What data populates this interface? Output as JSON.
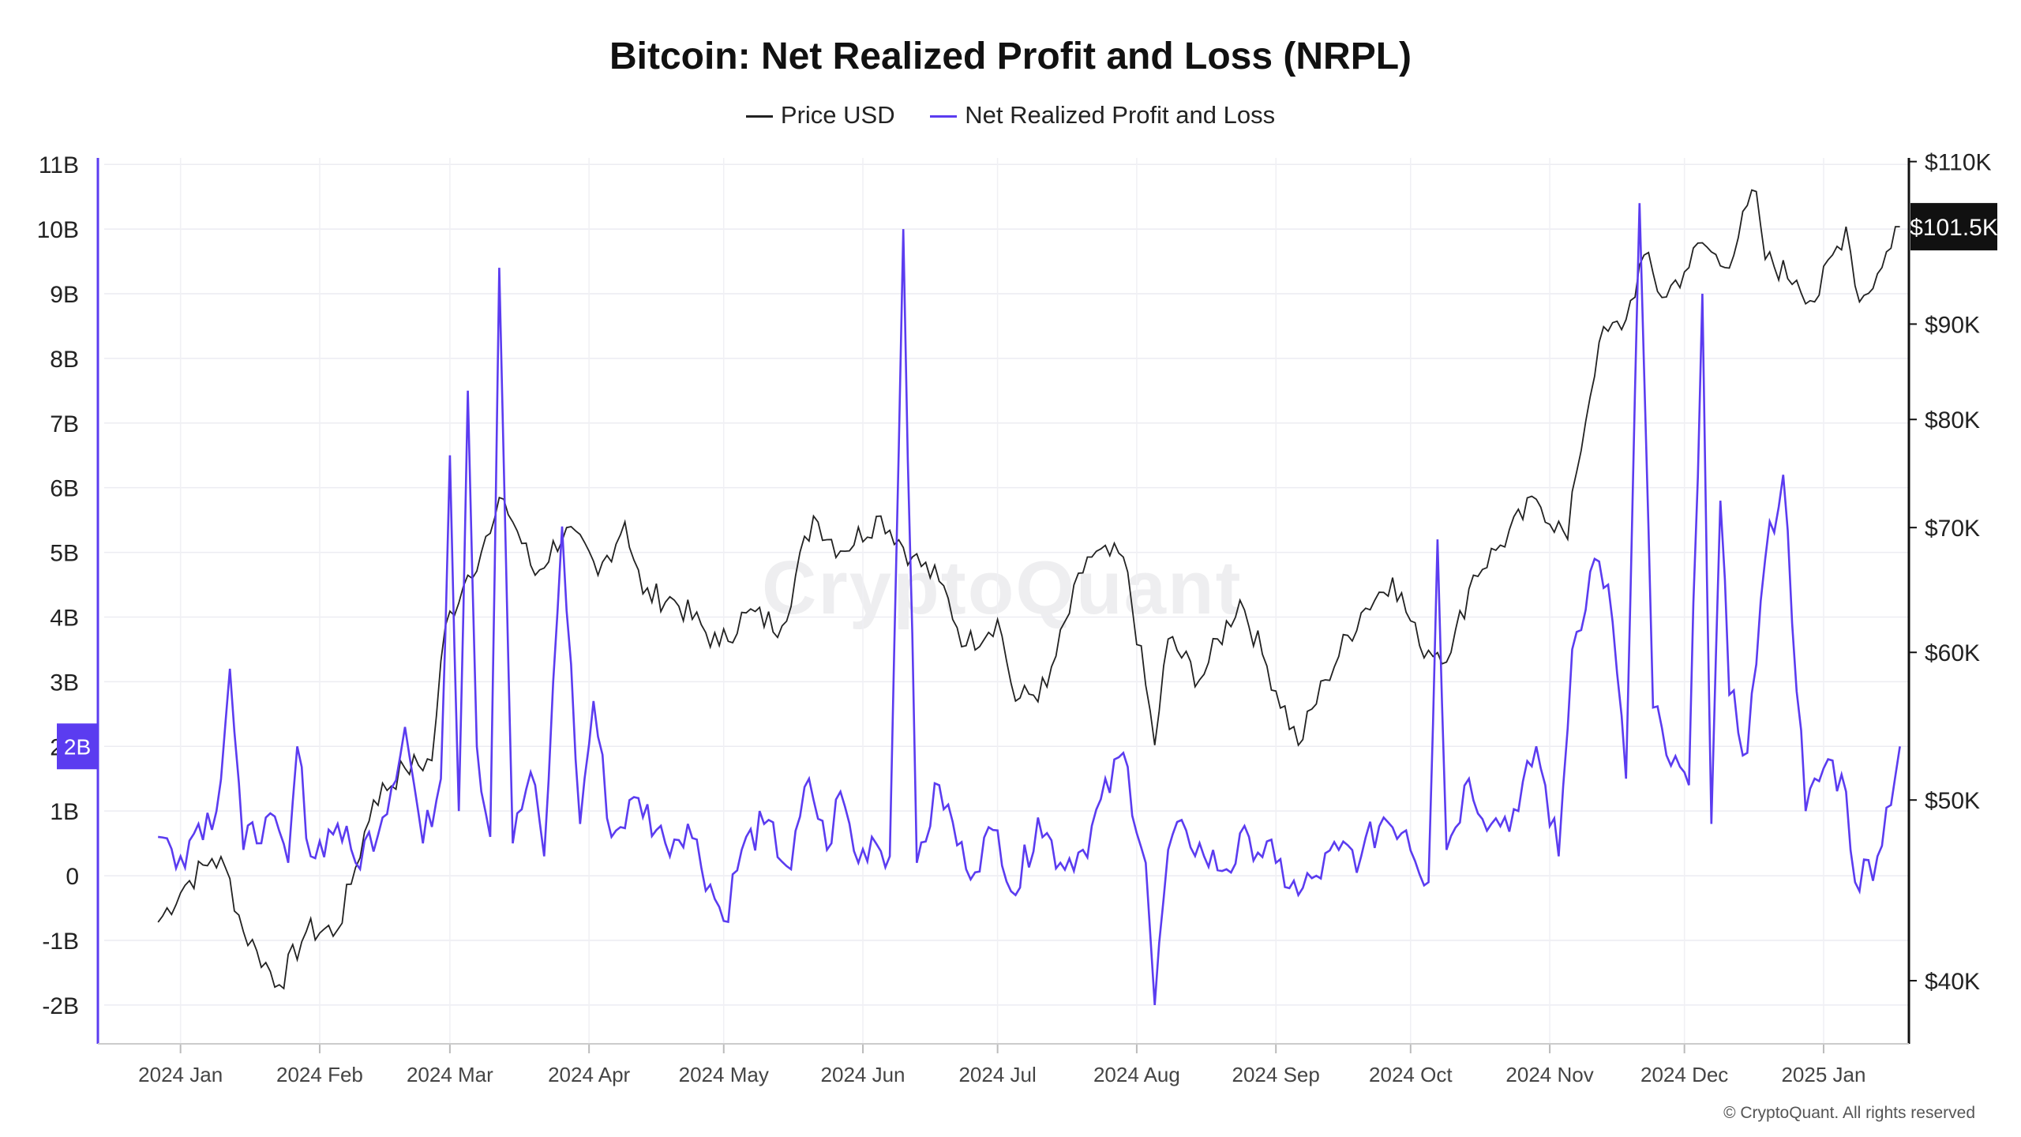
{
  "chart_data": {
    "type": "line",
    "title": "Bitcoin: Net Realized Profit and Loss (NRPL)",
    "legend": {
      "placement": "top-center"
    },
    "series": [
      {
        "name": "Price USD",
        "axis": "right",
        "color": "#222222",
        "points": [
          [
            "2023-12-27",
            43000
          ],
          [
            "2024-01-02",
            45000
          ],
          [
            "2024-01-08",
            46500
          ],
          [
            "2024-01-11",
            46000
          ],
          [
            "2024-01-15",
            42500
          ],
          [
            "2024-01-18",
            41500
          ],
          [
            "2024-01-23",
            39800
          ],
          [
            "2024-01-29",
            42500
          ],
          [
            "2024-02-05",
            42600
          ],
          [
            "2024-02-09",
            46000
          ],
          [
            "2024-02-13",
            50000
          ],
          [
            "2024-02-20",
            52000
          ],
          [
            "2024-02-26",
            52500
          ],
          [
            "2024-02-29",
            62000
          ],
          [
            "2024-03-05",
            66000
          ],
          [
            "2024-03-10",
            69500
          ],
          [
            "2024-03-13",
            72500
          ],
          [
            "2024-03-20",
            66000
          ],
          [
            "2024-03-27",
            70000
          ],
          [
            "2024-04-03",
            66000
          ],
          [
            "2024-04-09",
            70500
          ],
          [
            "2024-04-13",
            64500
          ],
          [
            "2024-04-20",
            64000
          ],
          [
            "2024-04-30",
            60500
          ],
          [
            "2024-05-06",
            63000
          ],
          [
            "2024-05-14",
            62000
          ],
          [
            "2024-05-21",
            71000
          ],
          [
            "2024-05-27",
            68000
          ],
          [
            "2024-06-05",
            71000
          ],
          [
            "2024-06-12",
            67500
          ],
          [
            "2024-06-18",
            65500
          ],
          [
            "2024-06-24",
            60500
          ],
          [
            "2024-07-01",
            62500
          ],
          [
            "2024-07-05",
            56500
          ],
          [
            "2024-07-12",
            57500
          ],
          [
            "2024-07-21",
            67500
          ],
          [
            "2024-07-29",
            67500
          ],
          [
            "2024-08-05",
            53500
          ],
          [
            "2024-08-08",
            61000
          ],
          [
            "2024-08-15",
            58000
          ],
          [
            "2024-08-24",
            64000
          ],
          [
            "2024-08-30",
            59000
          ],
          [
            "2024-09-06",
            53500
          ],
          [
            "2024-09-12",
            58000
          ],
          [
            "2024-09-20",
            63000
          ],
          [
            "2024-09-27",
            65800
          ],
          [
            "2024-10-03",
            60500
          ],
          [
            "2024-10-10",
            60000
          ],
          [
            "2024-10-15",
            66000
          ],
          [
            "2024-10-21",
            68500
          ],
          [
            "2024-10-29",
            72500
          ],
          [
            "2024-11-05",
            69000
          ],
          [
            "2024-11-07",
            75000
          ],
          [
            "2024-11-12",
            88000
          ],
          [
            "2024-11-18",
            90500
          ],
          [
            "2024-11-22",
            98000
          ],
          [
            "2024-11-26",
            93000
          ],
          [
            "2024-12-01",
            96000
          ],
          [
            "2024-12-05",
            99500
          ],
          [
            "2024-12-10",
            96500
          ],
          [
            "2024-12-17",
            106000
          ],
          [
            "2024-12-19",
            97500
          ],
          [
            "2024-12-26",
            95000
          ],
          [
            "2024-12-30",
            92500
          ],
          [
            "2025-01-06",
            101500
          ],
          [
            "2025-01-09",
            92500
          ],
          [
            "2025-01-14",
            96500
          ],
          [
            "2025-01-17",
            101500
          ],
          [
            "2025-01-18",
            101500
          ]
        ]
      },
      {
        "name": "Net Realized Profit and Loss",
        "axis": "left",
        "color": "#5b3cf0",
        "points": [
          [
            "2023-12-27",
            0.6
          ],
          [
            "2024-01-01",
            0.3
          ],
          [
            "2024-01-05",
            0.8
          ],
          [
            "2024-01-09",
            1.0
          ],
          [
            "2024-01-12",
            3.2
          ],
          [
            "2024-01-15",
            0.4
          ],
          [
            "2024-01-20",
            0.9
          ],
          [
            "2024-01-25",
            0.2
          ],
          [
            "2024-01-27",
            2.0
          ],
          [
            "2024-01-30",
            0.3
          ],
          [
            "2024-02-05",
            0.8
          ],
          [
            "2024-02-09",
            0.2
          ],
          [
            "2024-02-15",
            0.9
          ],
          [
            "2024-02-20",
            2.3
          ],
          [
            "2024-02-24",
            0.5
          ],
          [
            "2024-02-28",
            1.5
          ],
          [
            "2024-03-01",
            6.5
          ],
          [
            "2024-03-03",
            1.0
          ],
          [
            "2024-03-05",
            7.5
          ],
          [
            "2024-03-07",
            2.0
          ],
          [
            "2024-03-10",
            0.6
          ],
          [
            "2024-03-12",
            9.4
          ],
          [
            "2024-03-15",
            0.5
          ],
          [
            "2024-03-19",
            1.6
          ],
          [
            "2024-03-22",
            0.3
          ],
          [
            "2024-03-26",
            5.4
          ],
          [
            "2024-03-30",
            0.8
          ],
          [
            "2024-04-02",
            2.7
          ],
          [
            "2024-04-06",
            0.6
          ],
          [
            "2024-04-12",
            1.2
          ],
          [
            "2024-04-18",
            0.5
          ],
          [
            "2024-04-23",
            0.8
          ],
          [
            "2024-05-01",
            -0.7
          ],
          [
            "2024-05-05",
            0.4
          ],
          [
            "2024-05-10",
            0.8
          ],
          [
            "2024-05-16",
            0.1
          ],
          [
            "2024-05-20",
            1.5
          ],
          [
            "2024-05-24",
            0.4
          ],
          [
            "2024-05-27",
            1.3
          ],
          [
            "2024-05-31",
            0.2
          ],
          [
            "2024-06-03",
            0.6
          ],
          [
            "2024-06-07",
            0.3
          ],
          [
            "2024-06-10",
            10.0
          ],
          [
            "2024-06-13",
            0.2
          ],
          [
            "2024-06-18",
            1.4
          ],
          [
            "2024-06-24",
            0.1
          ],
          [
            "2024-07-01",
            0.7
          ],
          [
            "2024-07-05",
            -0.3
          ],
          [
            "2024-07-10",
            0.9
          ],
          [
            "2024-07-15",
            0.2
          ],
          [
            "2024-07-20",
            0.4
          ],
          [
            "2024-07-29",
            1.9
          ],
          [
            "2024-08-03",
            0.2
          ],
          [
            "2024-08-05",
            -2.0
          ],
          [
            "2024-08-08",
            0.4
          ],
          [
            "2024-08-12",
            0.7
          ],
          [
            "2024-08-16",
            0.3
          ],
          [
            "2024-08-21",
            0.1
          ],
          [
            "2024-08-26",
            0.6
          ],
          [
            "2024-09-01",
            0.2
          ],
          [
            "2024-09-06",
            -0.3
          ],
          [
            "2024-09-10",
            0.0
          ],
          [
            "2024-09-15",
            0.4
          ],
          [
            "2024-09-20",
            0.3
          ],
          [
            "2024-09-25",
            0.9
          ],
          [
            "2024-09-30",
            0.7
          ],
          [
            "2024-10-05",
            -0.1
          ],
          [
            "2024-10-07",
            5.2
          ],
          [
            "2024-10-09",
            0.4
          ],
          [
            "2024-10-14",
            1.5
          ],
          [
            "2024-10-19",
            0.8
          ],
          [
            "2024-10-25",
            1.0
          ],
          [
            "2024-10-29",
            2.0
          ],
          [
            "2024-11-03",
            0.3
          ],
          [
            "2024-11-06",
            3.5
          ],
          [
            "2024-11-11",
            4.9
          ],
          [
            "2024-11-14",
            4.5
          ],
          [
            "2024-11-18",
            1.5
          ],
          [
            "2024-11-21",
            10.4
          ],
          [
            "2024-11-24",
            2.6
          ],
          [
            "2024-11-28",
            1.7
          ],
          [
            "2024-12-02",
            1.4
          ],
          [
            "2024-12-05",
            9.0
          ],
          [
            "2024-12-07",
            0.8
          ],
          [
            "2024-12-09",
            5.8
          ],
          [
            "2024-12-11",
            2.8
          ],
          [
            "2024-12-15",
            1.9
          ],
          [
            "2024-12-19",
            4.9
          ],
          [
            "2024-12-23",
            6.2
          ],
          [
            "2024-12-28",
            1.0
          ],
          [
            "2025-01-02",
            1.8
          ],
          [
            "2025-01-06",
            1.3
          ],
          [
            "2025-01-08",
            -0.1
          ],
          [
            "2025-01-13",
            0.3
          ],
          [
            "2025-01-18",
            2.0
          ]
        ]
      }
    ],
    "left_axis": {
      "ticks": [
        "11B",
        "10B",
        "9B",
        "8B",
        "7B",
        "6B",
        "5B",
        "4B",
        "3B",
        "2B",
        "1B",
        "0",
        "-1B",
        "-2B"
      ],
      "tick_values": [
        11,
        10,
        9,
        8,
        7,
        6,
        5,
        4,
        3,
        2,
        1,
        0,
        -1,
        -2
      ],
      "ylim": [
        -2.6,
        11.1
      ]
    },
    "right_axis": {
      "scale": "log",
      "ticks": [
        "$110K",
        "$90K",
        "$80K",
        "$70K",
        "$60K",
        "$50K",
        "$40K"
      ],
      "tick_values": [
        110000,
        90000,
        80000,
        70000,
        60000,
        50000,
        40000
      ],
      "ylim": [
        37000,
        110500
      ]
    },
    "x_axis": {
      "ticks": [
        "2024 Jan",
        "2024 Feb",
        "2024 Mar",
        "2024 Apr",
        "2024 May",
        "2024 Jun",
        "2024 Jul",
        "2024 Aug",
        "2024 Sep",
        "2024 Oct",
        "2024 Nov",
        "2024 Dec",
        "2025 Jan"
      ],
      "tick_dates": [
        "2024-01-01",
        "2024-02-01",
        "2024-03-01",
        "2024-04-01",
        "2024-05-01",
        "2024-06-01",
        "2024-07-01",
        "2024-08-01",
        "2024-09-01",
        "2024-10-01",
        "2024-11-01",
        "2024-12-01",
        "2025-01-01"
      ],
      "xlim": [
        "2023-12-15",
        "2025-01-20"
      ]
    },
    "grid": true,
    "current_value_labels": {
      "price": "$101.5K",
      "nrpl": "2B"
    },
    "watermark": "CryptoQuant",
    "copyright": "© CryptoQuant. All rights reserved"
  }
}
